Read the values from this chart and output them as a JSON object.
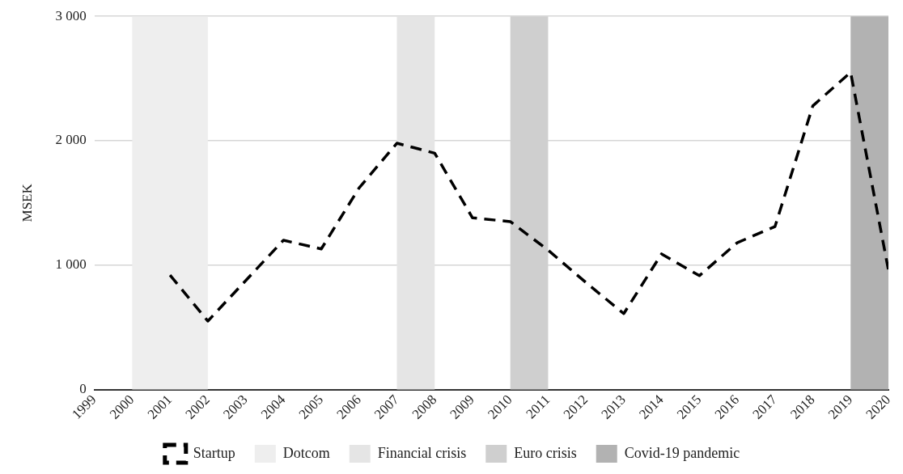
{
  "chart_data": {
    "type": "line",
    "ylabel": "MSEK",
    "x": [
      2001,
      2002,
      2003,
      2004,
      2005,
      2006,
      2007,
      2008,
      2009,
      2010,
      2011,
      2012,
      2013,
      2014,
      2015,
      2016,
      2017,
      2018,
      2019,
      2020
    ],
    "series": [
      {
        "name": "Startup",
        "color": "#000000",
        "line_style": "dashed",
        "values": [
          920,
          550,
          875,
          1200,
          1130,
          1620,
          1980,
          1900,
          1380,
          1350,
          1120,
          860,
          610,
          1090,
          915,
          1180,
          1310,
          2280,
          2550,
          960
        ]
      }
    ],
    "xlim": [
      1999,
      2020
    ],
    "xticks": [
      1999,
      2000,
      2001,
      2002,
      2003,
      2004,
      2005,
      2006,
      2007,
      2008,
      2009,
      2010,
      2011,
      2012,
      2013,
      2014,
      2015,
      2016,
      2017,
      2018,
      2019,
      2020
    ],
    "ylim": [
      0,
      3000
    ],
    "yticks": [
      0,
      {
        "value": 1000,
        "label": "1 000"
      },
      {
        "value": 2000,
        "label": "2 000"
      },
      {
        "value": 3000,
        "label": "3 000"
      }
    ],
    "bands": [
      {
        "axis": "x",
        "from": 2000,
        "to": 2002,
        "label": "Dotcom",
        "color": "#eeeeee"
      },
      {
        "axis": "x",
        "from": 2007,
        "to": 2008,
        "label": "Financial crisis",
        "color": "#e5e5e5"
      },
      {
        "axis": "x",
        "from": 2010,
        "to": 2011,
        "label": "Euro crisis",
        "color": "#cfcfcf"
      },
      {
        "axis": "x",
        "from": 2019,
        "to": 2020,
        "label": "Covid-19 pandemic",
        "color": "#b2b2b2"
      }
    ],
    "grid": "y",
    "legend": "bottom",
    "marker": "none"
  }
}
